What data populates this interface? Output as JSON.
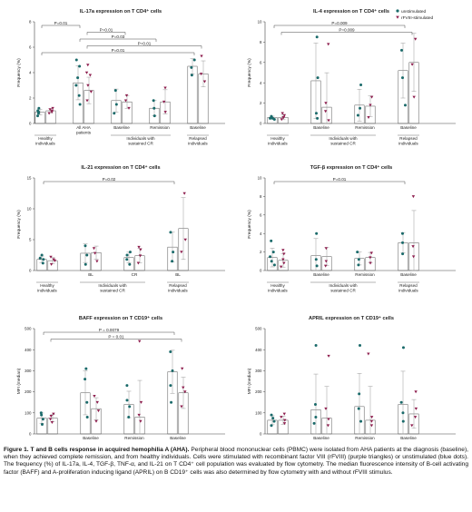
{
  "legend": {
    "items": [
      {
        "label": "unstimulated",
        "shape": "dot",
        "color": "#1a6a6a"
      },
      {
        "label": "rFVIII-stimulated",
        "shape": "triangle",
        "color": "#8e1e4e"
      }
    ]
  },
  "colors": {
    "unstim": "#1a6a6a",
    "stim": "#8e1e4e",
    "axis": "#444444",
    "line": "#999999"
  },
  "caption": {
    "figure_label": "Figure 1",
    "title": ". T and B cells response in acquired hemophilia A (AHA).",
    "body": " Peripheral blood mononuclear cells (PBMC) were isolated from AHA patients at the diagnosis (baseline), when they achieved complete remission, and from healthy individuals. Cells were stimulated with recombinant factor VIII (rFVIII) (purple triangles) or unstimulated (blue dots). The frequency (%) of IL-17a, IL-4, TGF-β, TNF-α, and IL-21 on T CD4⁺ cell population was evaluated by flow cytometry. The median fluorescence intensity of B-cell activating factor (BAFF) and A-proliferation inducing ligand (APRIL) on B CD19⁺ cells was also determined by flow cytometry with and without rFVIII stimulus."
  },
  "chart_data": [
    {
      "type": "scatter",
      "title": "IL-17a expression on T CD4⁺ cells",
      "ylabel": "Frequency (%)",
      "ylim": [
        0,
        8
      ],
      "yticks": [
        0,
        2,
        4,
        6,
        8
      ],
      "groups": [
        {
          "label": "Healthy individuals",
          "unstim": [
            0.6,
            0.8,
            1.0,
            1.2,
            0.9
          ],
          "stim": [
            0.8,
            1.1,
            1.2,
            0.9,
            1.0
          ],
          "unstim_mean": 0.9,
          "stim_mean": 1.0
        },
        {
          "label": "All AHA patients",
          "unstim": [
            1.5,
            2.2,
            3.0,
            3.6,
            4.5,
            5.0
          ],
          "stim": [
            1.8,
            2.5,
            3.0,
            3.8,
            4.0,
            4.6
          ],
          "unstim_mean": 3.2,
          "stim_mean": 2.6
        },
        {
          "label": "Baseline",
          "unstim": [
            0.8,
            1.5,
            2.6
          ],
          "stim": [
            1.2,
            1.8,
            2.2
          ],
          "unstim_mean": 1.8,
          "stim_mean": 1.7
        },
        {
          "label": "Remission",
          "unstim": [
            0.6,
            1.2,
            1.8
          ],
          "stim": [
            0.9,
            1.7,
            2.8
          ],
          "unstim_mean": 1.2,
          "stim_mean": 1.7
        },
        {
          "label": "Baseline",
          "unstim": [
            3.8,
            4.4,
            5.0
          ],
          "stim": [
            3.3,
            3.9,
            5.3
          ],
          "unstim_mean": 4.5,
          "stim_mean": 3.9
        }
      ],
      "group_labels": [
        "Healthy individuals",
        "All AHA patients",
        "Baseline",
        "Remission",
        "Baseline"
      ],
      "categories": [
        {
          "label": "Healthy individuals",
          "span": [
            0,
            0
          ]
        },
        {
          "label": "Individuals with sustained CR",
          "span": [
            2,
            3
          ]
        },
        {
          "label": "Relapsed individuals",
          "span": [
            4,
            4
          ]
        }
      ],
      "annotations": [
        {
          "text": "P=0.01",
          "from": 0,
          "to": 1
        },
        {
          "text": "P=0.01",
          "from": 1,
          "to": 2
        },
        {
          "text": "P=0.03",
          "from": 1,
          "to": 3
        },
        {
          "text": "P=0.01",
          "from": 1,
          "to": 4
        },
        {
          "text": "P=0.01",
          "from": 0,
          "to": 4
        }
      ]
    },
    {
      "type": "scatter",
      "title": "IL-4 expression on T CD4⁺ cells",
      "ylabel": "Frequency (%)",
      "ylim": [
        0,
        10
      ],
      "yticks": [
        0,
        2,
        4,
        6,
        8,
        10
      ],
      "groups": [
        {
          "label": "Healthy individuals",
          "unstim": [
            0.4,
            0.5,
            0.6,
            0.7,
            0.5
          ],
          "stim": [
            0.4,
            0.6,
            0.8,
            1.0,
            0.6
          ],
          "unstim_mean": 0.6,
          "stim_mean": 0.6
        },
        {
          "label": "Baseline",
          "unstim": [
            0.5,
            1.0,
            4.5,
            8.5
          ],
          "stim": [
            0.3,
            1.2,
            2.0,
            7.8
          ],
          "unstim_mean": 4.2,
          "stim_mean": 1.6
        },
        {
          "label": "Remission",
          "unstim": [
            0.8,
            1.5,
            3.8
          ],
          "stim": [
            0.6,
            1.8,
            2.6
          ],
          "unstim_mean": 1.8,
          "stim_mean": 1.7
        },
        {
          "label": "Baseline",
          "unstim": [
            1.8,
            4.5,
            7.2
          ],
          "stim": [
            2.6,
            5.8,
            8.3
          ],
          "unstim_mean": 5.2,
          "stim_mean": 6.0
        }
      ],
      "group_labels": [
        "Healthy individuals",
        "Baseline",
        "Remission",
        "Baseline"
      ],
      "categories": [
        {
          "label": "Healthy individuals",
          "span": [
            0,
            0
          ]
        },
        {
          "label": "Individuals with sustained CR",
          "span": [
            1,
            2
          ]
        },
        {
          "label": "Relapsed individuals",
          "span": [
            3,
            3
          ]
        }
      ],
      "annotations": [
        {
          "text": "P=0.009",
          "from": 0,
          "to": 3
        },
        {
          "text": "P=0.009",
          "from": 0,
          "to": 3
        }
      ]
    },
    {
      "type": "scatter",
      "title": "IL-21 expression on T CD4⁺ cells",
      "ylabel": "Frequency (%)",
      "ylim": [
        0,
        15
      ],
      "yticks": [
        0,
        5,
        10,
        15
      ],
      "groups": [
        {
          "label": "Healthy individuals",
          "unstim": [
            1.2,
            1.8,
            2.5,
            2.0
          ],
          "stim": [
            1.0,
            1.6,
            2.2,
            1.8
          ],
          "unstim_mean": 1.8,
          "stim_mean": 1.6
        },
        {
          "label": "BL",
          "unstim": [
            1.0,
            2.5,
            4.0
          ],
          "stim": [
            1.5,
            2.8,
            3.6
          ],
          "unstim_mean": 2.8,
          "stim_mean": 2.9
        },
        {
          "label": "CR",
          "unstim": [
            1.0,
            1.8,
            2.5,
            3.0
          ],
          "stim": [
            1.2,
            2.4,
            3.4,
            3.8
          ],
          "unstim_mean": 2.1,
          "stim_mean": 2.4
        },
        {
          "label": "BL",
          "unstim": [
            1.5,
            3.0,
            6.2
          ],
          "stim": [
            3.0,
            5.0,
            12.5
          ],
          "unstim_mean": 3.8,
          "stim_mean": 6.8
        }
      ],
      "group_labels": [
        "Healthy individuals",
        "BL",
        "CR",
        "BL"
      ],
      "categories": [
        {
          "label": "Healthy individuals",
          "span": [
            0,
            0
          ]
        },
        {
          "label": "Individuals with sustained CR",
          "span": [
            1,
            2
          ]
        },
        {
          "label": "Relapsed individuals",
          "span": [
            3,
            3
          ]
        }
      ],
      "annotations": [
        {
          "text": "P=0.02",
          "from": 0,
          "to": 3
        }
      ]
    },
    {
      "type": "scatter",
      "title": "TGF-β expression on T CD4⁺ cells",
      "ylabel": "Frequency (%)",
      "ylim": [
        0,
        10
      ],
      "yticks": [
        0,
        2,
        4,
        6,
        8,
        10
      ],
      "groups": [
        {
          "label": "Healthy individuals",
          "unstim": [
            0.6,
            1.0,
            1.5,
            2.0,
            3.2
          ],
          "stim": [
            0.4,
            0.8,
            1.2,
            1.8,
            2.2
          ],
          "unstim_mean": 1.4,
          "stim_mean": 1.1
        },
        {
          "label": "Baseline",
          "unstim": [
            0.5,
            1.2,
            4.0
          ],
          "stim": [
            0.5,
            1.0,
            2.4
          ],
          "unstim_mean": 1.6,
          "stim_mean": 1.5
        },
        {
          "label": "Remission",
          "unstim": [
            0.6,
            1.2,
            2.0
          ],
          "stim": [
            0.8,
            1.4,
            1.9
          ],
          "unstim_mean": 1.3,
          "stim_mean": 1.4
        },
        {
          "label": "Baseline",
          "unstim": [
            1.8,
            3.0,
            4.0
          ],
          "stim": [
            1.5,
            2.6,
            8.0
          ],
          "unstim_mean": 3.0,
          "stim_mean": 3.0
        }
      ],
      "group_labels": [
        "Healthy individuals",
        "Baseline",
        "Remission",
        "Baseline"
      ],
      "categories": [
        {
          "label": "Healthy individuals",
          "span": [
            0,
            0
          ]
        },
        {
          "label": "Individuals with sustained CR",
          "span": [
            1,
            2
          ]
        },
        {
          "label": "Relapsed individuals",
          "span": [
            3,
            3
          ]
        }
      ],
      "annotations": [
        {
          "text": "P=0.01",
          "from": 0,
          "to": 3
        }
      ]
    },
    {
      "type": "bar",
      "title": "BAFF expression on T CD19⁺ cells",
      "ylabel": "MFI (median)",
      "ylim": [
        0,
        500
      ],
      "yticks": [
        0,
        100,
        200,
        300,
        400,
        500
      ],
      "groups": [
        {
          "label": "Healthy individuals",
          "unstim": [
            45,
            70,
            90,
            100
          ],
          "stim": [
            55,
            70,
            85,
            95
          ],
          "unstim_mean": 75,
          "stim_mean": 75
        },
        {
          "label": "Baseline",
          "unstim": [
            80,
            150,
            260,
            310
          ],
          "stim": [
            60,
            110,
            150,
            180
          ],
          "unstim_mean": 195,
          "stim_mean": 120
        },
        {
          "label": "Remission",
          "unstim": [
            80,
            130,
            160,
            230
          ],
          "stim": [
            60,
            90,
            150,
            440
          ],
          "unstim_mean": 140,
          "stim_mean": 80
        },
        {
          "label": "Baseline",
          "unstim": [
            150,
            230,
            300,
            390
          ],
          "stim": [
            130,
            200,
            220,
            310
          ],
          "unstim_mean": 295,
          "stim_mean": 195
        }
      ],
      "group_labels": [
        "Healthy individuals",
        "Baseline",
        "Remission",
        "Baseline"
      ],
      "categories": [
        {
          "label": "Healthy individuals",
          "span": [
            0,
            0
          ]
        },
        {
          "label": "Individuals with sustained CR",
          "span": [
            1,
            2
          ]
        },
        {
          "label": "Relapsed individuals",
          "span": [
            3,
            3
          ]
        }
      ],
      "annotations": [
        {
          "text": "P = 0.0079",
          "from": 0,
          "to": 3
        },
        {
          "text": "P = 0.01",
          "from": 0,
          "to": 3
        }
      ]
    },
    {
      "type": "bar",
      "title": "APRIL expression on T CD19⁺ cells",
      "ylabel": "MFI (median)",
      "ylim": [
        0,
        500
      ],
      "yticks": [
        0,
        100,
        200,
        300,
        400,
        500
      ],
      "groups": [
        {
          "label": "Healthy individuals",
          "unstim": [
            40,
            60,
            75,
            90
          ],
          "stim": [
            50,
            65,
            80,
            95
          ],
          "unstim_mean": 65,
          "stim_mean": 65
        },
        {
          "label": "Baseline",
          "unstim": [
            50,
            80,
            140,
            420
          ],
          "stim": [
            40,
            70,
            120,
            370
          ],
          "unstim_mean": 115,
          "stim_mean": 75
        },
        {
          "label": "Remission",
          "unstim": [
            60,
            120,
            190,
            420
          ],
          "stim": [
            40,
            60,
            80,
            380
          ],
          "unstim_mean": 130,
          "stim_mean": 65
        },
        {
          "label": "Baseline",
          "unstim": [
            60,
            100,
            150,
            410
          ],
          "stim": [
            40,
            80,
            120,
            200
          ],
          "unstim_mean": 140,
          "stim_mean": 95
        }
      ],
      "group_labels": [
        "Healthy individuals",
        "Baseline",
        "Remission",
        "Baseline"
      ],
      "categories": [
        {
          "label": "Healthy individuals",
          "span": [
            0,
            0
          ]
        },
        {
          "label": "Individuals with sustained CR",
          "span": [
            1,
            2
          ]
        },
        {
          "label": "Relapsed individuals",
          "span": [
            3,
            3
          ]
        }
      ],
      "annotations": []
    }
  ]
}
